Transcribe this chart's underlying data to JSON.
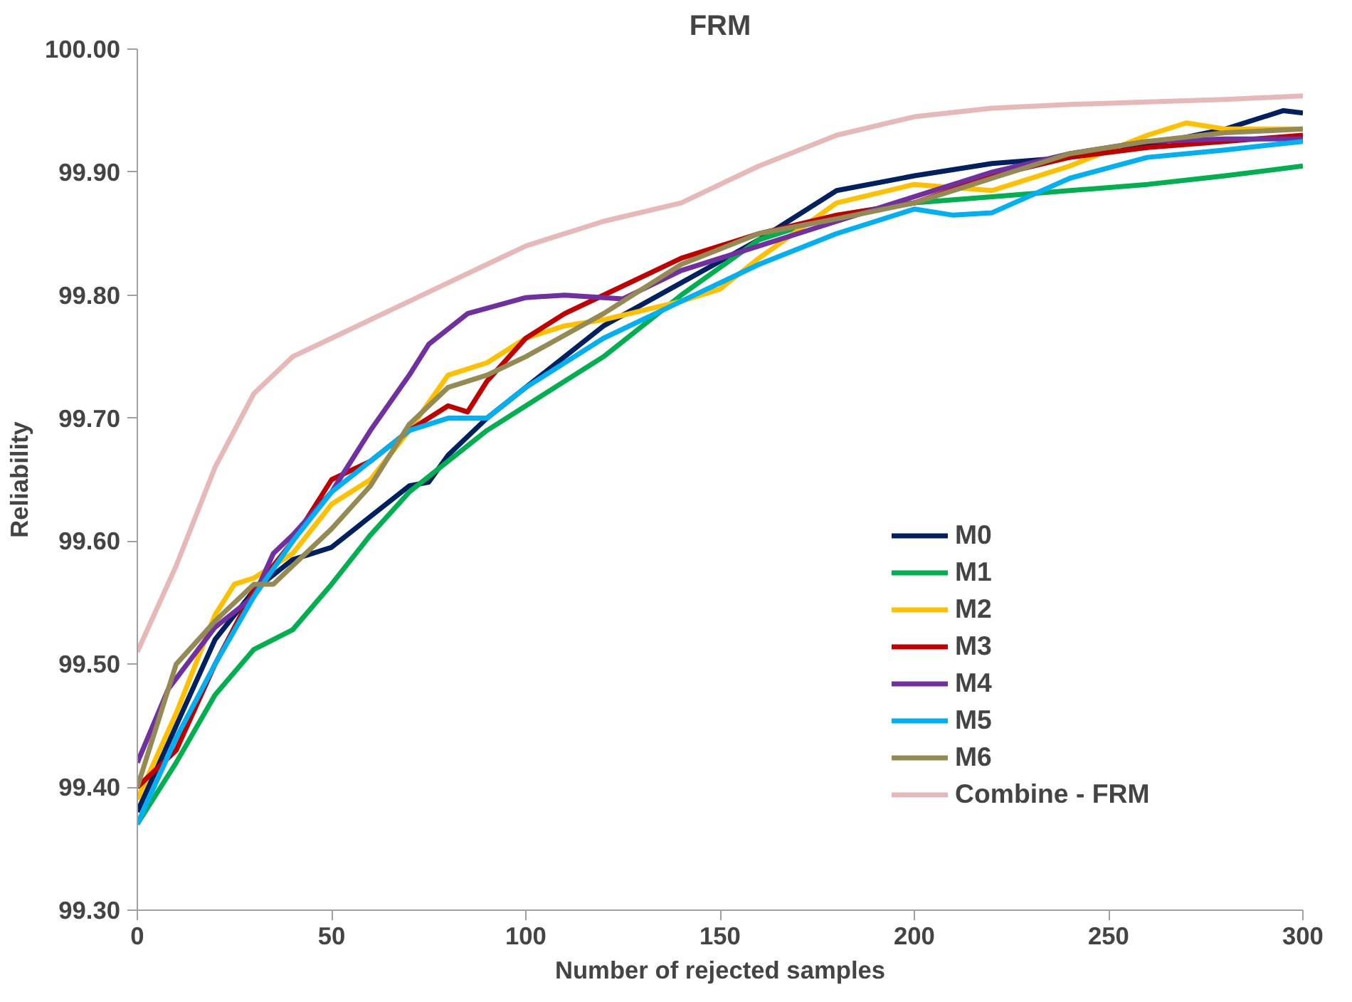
{
  "chart_data": {
    "type": "line",
    "title": "FRM",
    "xlabel": "Number of rejected samples",
    "ylabel": "Reliability",
    "xlim": [
      0,
      300
    ],
    "xticks": [
      0,
      50,
      100,
      150,
      200,
      250,
      300
    ],
    "ylim": [
      99.3,
      100.0
    ],
    "yticks": [
      {
        "value": 99.3,
        "label": "99.30"
      },
      {
        "value": 99.4,
        "label": "99.40"
      },
      {
        "value": 99.5,
        "label": "99.50"
      },
      {
        "value": 99.6,
        "label": "99.60"
      },
      {
        "value": 99.7,
        "label": "99.70"
      },
      {
        "value": 99.8,
        "label": "99.80"
      },
      {
        "value": 99.9,
        "label": "99.90"
      },
      {
        "value": 100.0,
        "label": "100.00"
      }
    ],
    "grid": false,
    "legend": "right",
    "marker": "none",
    "line_style": "solid",
    "series": [
      {
        "name": "M0",
        "color": "#002060",
        "x": [
          0,
          10,
          20,
          30,
          40,
          50,
          60,
          70,
          75,
          80,
          90,
          100,
          120,
          140,
          160,
          180,
          200,
          220,
          240,
          260,
          280,
          295,
          300
        ],
        "values": [
          99.38,
          99.45,
          99.52,
          99.56,
          99.585,
          99.595,
          99.62,
          99.645,
          99.648,
          99.67,
          99.7,
          99.725,
          99.775,
          99.81,
          99.845,
          99.885,
          99.897,
          99.907,
          99.912,
          99.922,
          99.935,
          99.95,
          99.948
        ]
      },
      {
        "name": "M1",
        "color": "#00b050",
        "x": [
          0,
          10,
          20,
          30,
          40,
          50,
          60,
          70,
          80,
          90,
          100,
          120,
          140,
          160,
          180,
          200,
          220,
          240,
          260,
          280,
          300
        ],
        "values": [
          99.37,
          99.42,
          99.475,
          99.512,
          99.528,
          99.565,
          99.605,
          99.64,
          99.665,
          99.69,
          99.71,
          99.75,
          99.8,
          99.845,
          99.865,
          99.875,
          99.88,
          99.885,
          99.89,
          99.897,
          99.905
        ]
      },
      {
        "name": "M2",
        "color": "#ffc000",
        "x": [
          0,
          10,
          20,
          25,
          30,
          40,
          50,
          60,
          70,
          80,
          90,
          100,
          110,
          120,
          140,
          150,
          160,
          180,
          200,
          220,
          240,
          260,
          270,
          280,
          300
        ],
        "values": [
          99.39,
          99.46,
          99.54,
          99.565,
          99.57,
          99.59,
          99.63,
          99.65,
          99.69,
          99.735,
          99.745,
          99.765,
          99.775,
          99.78,
          99.795,
          99.805,
          99.83,
          99.875,
          99.89,
          99.885,
          99.905,
          99.93,
          99.94,
          99.935,
          99.935
        ]
      },
      {
        "name": "M3",
        "color": "#c00000",
        "x": [
          0,
          10,
          20,
          30,
          40,
          50,
          60,
          70,
          80,
          85,
          90,
          100,
          110,
          120,
          140,
          160,
          180,
          200,
          220,
          240,
          260,
          280,
          300
        ],
        "values": [
          99.4,
          99.43,
          99.5,
          99.56,
          99.6,
          99.65,
          99.665,
          99.69,
          99.71,
          99.705,
          99.73,
          99.765,
          99.785,
          99.8,
          99.83,
          99.85,
          99.865,
          99.875,
          99.897,
          99.912,
          99.92,
          99.925,
          99.93
        ]
      },
      {
        "name": "M4",
        "color": "#7030a0",
        "x": [
          0,
          8,
          20,
          30,
          35,
          40,
          50,
          60,
          70,
          75,
          85,
          100,
          110,
          125,
          140,
          160,
          180,
          200,
          220,
          240,
          260,
          280,
          300
        ],
        "values": [
          99.42,
          99.48,
          99.53,
          99.555,
          99.59,
          99.605,
          99.64,
          99.69,
          99.735,
          99.76,
          99.785,
          99.798,
          99.8,
          99.797,
          99.82,
          99.84,
          99.86,
          99.88,
          99.9,
          99.915,
          99.925,
          99.927,
          99.927
        ]
      },
      {
        "name": "M5",
        "color": "#00b0f0",
        "x": [
          0,
          10,
          20,
          30,
          40,
          50,
          60,
          70,
          80,
          90,
          100,
          120,
          140,
          160,
          180,
          200,
          210,
          220,
          240,
          260,
          280,
          300
        ],
        "values": [
          99.37,
          99.44,
          99.5,
          99.555,
          99.6,
          99.64,
          99.665,
          99.69,
          99.7,
          99.7,
          99.725,
          99.765,
          99.795,
          99.825,
          99.85,
          99.87,
          99.865,
          99.867,
          99.895,
          99.912,
          99.918,
          99.925
        ]
      },
      {
        "name": "M6",
        "color": "#948a54",
        "x": [
          0,
          10,
          20,
          30,
          35,
          40,
          50,
          60,
          70,
          80,
          90,
          100,
          120,
          140,
          160,
          180,
          200,
          220,
          240,
          260,
          280,
          300
        ],
        "values": [
          99.4,
          99.5,
          99.535,
          99.565,
          99.565,
          99.58,
          99.61,
          99.645,
          99.695,
          99.725,
          99.735,
          99.75,
          99.785,
          99.825,
          99.85,
          99.862,
          99.875,
          99.895,
          99.915,
          99.925,
          99.932,
          99.935
        ]
      },
      {
        "name": "Combine - FRM",
        "color": "#e6b9b8",
        "x": [
          0,
          10,
          20,
          30,
          40,
          50,
          60,
          70,
          80,
          90,
          100,
          120,
          140,
          160,
          180,
          200,
          220,
          240,
          260,
          280,
          300
        ],
        "values": [
          99.51,
          99.58,
          99.66,
          99.72,
          99.75,
          99.765,
          99.78,
          99.795,
          99.81,
          99.825,
          99.84,
          99.86,
          99.875,
          99.905,
          99.93,
          99.945,
          99.952,
          99.955,
          99.957,
          99.959,
          99.962
        ]
      }
    ]
  }
}
